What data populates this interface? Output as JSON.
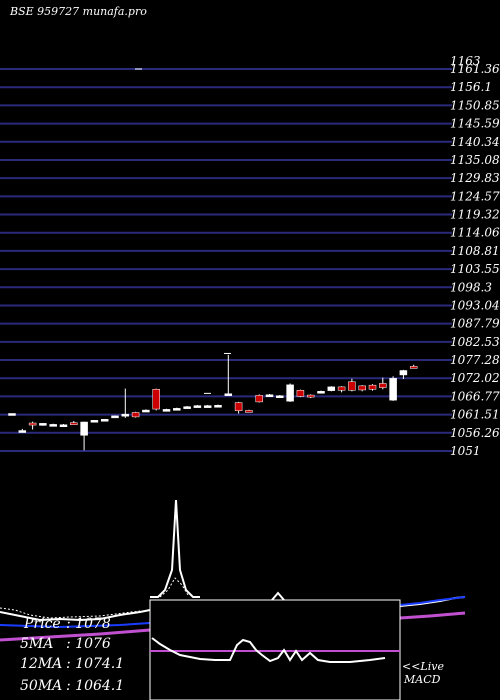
{
  "chart_data": {
    "type": "candlestick",
    "title": "BSE 959727 munafa.pro",
    "ylim": [
      1051,
      1163
    ],
    "price_ticks": [
      "1163",
      "1161.36",
      "1156.1",
      "1150.85",
      "1145.59",
      "1140.34",
      "1135.08",
      "1129.83",
      "1124.57",
      "1119.32",
      "1114.06",
      "1108.81",
      "1103.55",
      "1098.3",
      "1093.04",
      "1087.79",
      "1082.53",
      "1077.28",
      "1072.02",
      "1066.77",
      "1061.51",
      "1056.26",
      "1051"
    ],
    "candles": [
      {
        "o": 1062.0,
        "h": 1062.0,
        "l": 1061.5,
        "c": 1062.0,
        "color": "white"
      },
      {
        "o": 1057.0,
        "h": 1057.5,
        "l": 1056.5,
        "c": 1057.0,
        "color": "white"
      },
      {
        "o": 1059.2,
        "h": 1059.6,
        "l": 1057.3,
        "c": 1058.6,
        "color": "red"
      },
      {
        "o": 1058.9,
        "h": 1059.2,
        "l": 1058.4,
        "c": 1059.1,
        "color": "white"
      },
      {
        "o": 1058.8,
        "h": 1059.0,
        "l": 1058.6,
        "c": 1058.8,
        "color": "white"
      },
      {
        "o": 1058.7,
        "h": 1058.9,
        "l": 1058.5,
        "c": 1058.7,
        "color": "white"
      },
      {
        "o": 1059.3,
        "h": 1059.8,
        "l": 1058.9,
        "c": 1058.9,
        "color": "red"
      },
      {
        "o": 1059.5,
        "h": 1059.6,
        "l": 1051.2,
        "c": 1055.6,
        "color": "white"
      },
      {
        "o": 1060.0,
        "h": 1060.1,
        "l": 1059.9,
        "c": 1060.0,
        "color": "white"
      },
      {
        "o": 1060.3,
        "h": 1060.4,
        "l": 1060.1,
        "c": 1060.3,
        "color": "white"
      },
      {
        "o": 1061.3,
        "h": 1061.4,
        "l": 1061.0,
        "c": 1061.3,
        "color": "white"
      },
      {
        "o": 1061.2,
        "h": 1069.3,
        "l": 1060.7,
        "c": 1061.8,
        "color": "white"
      },
      {
        "o": 1062.3,
        "h": 1062.5,
        "l": 1060.8,
        "c": 1061.0,
        "color": "red"
      },
      {
        "o": 1063.0,
        "h": 1063.2,
        "l": 1062.8,
        "c": 1063.0,
        "color": "white"
      },
      {
        "o": 1069.1,
        "h": 1069.3,
        "l": 1062.9,
        "c": 1063.3,
        "color": "red"
      },
      {
        "o": 1063.2,
        "h": 1063.4,
        "l": 1062.8,
        "c": 1063.0,
        "color": "white"
      },
      {
        "o": 1063.5,
        "h": 1063.7,
        "l": 1063.3,
        "c": 1063.5,
        "color": "white"
      },
      {
        "o": 1064.0,
        "h": 1064.2,
        "l": 1063.7,
        "c": 1063.9,
        "color": "white"
      },
      {
        "o": 1064.3,
        "h": 1064.5,
        "l": 1064.1,
        "c": 1064.3,
        "color": "white"
      },
      {
        "o": 1064.3,
        "h": 1064.5,
        "l": 1064.1,
        "c": 1064.3,
        "color": "white"
      },
      {
        "o": 1064.4,
        "h": 1064.6,
        "l": 1064.1,
        "c": 1064.3,
        "color": "white"
      },
      {
        "o": 1067.8,
        "h": 1079.2,
        "l": 1067.6,
        "c": 1067.8,
        "color": "white"
      },
      {
        "o": 1065.2,
        "h": 1065.4,
        "l": 1062.0,
        "c": 1062.8,
        "color": "red"
      },
      {
        "o": 1062.9,
        "h": 1063.1,
        "l": 1062.5,
        "c": 1062.8,
        "color": "red"
      },
      {
        "o": 1067.3,
        "h": 1067.6,
        "l": 1065.2,
        "c": 1065.4,
        "color": "red"
      },
      {
        "o": 1067.5,
        "h": 1067.7,
        "l": 1067.3,
        "c": 1067.5,
        "color": "white"
      },
      {
        "o": 1067.2,
        "h": 1067.4,
        "l": 1066.8,
        "c": 1067.0,
        "color": "white"
      },
      {
        "o": 1065.6,
        "h": 1070.8,
        "l": 1065.4,
        "c": 1070.4,
        "color": "white"
      },
      {
        "o": 1068.8,
        "h": 1069.0,
        "l": 1066.8,
        "c": 1067.0,
        "color": "red"
      },
      {
        "o": 1067.4,
        "h": 1067.6,
        "l": 1066.5,
        "c": 1066.8,
        "color": "red"
      },
      {
        "o": 1068.5,
        "h": 1068.7,
        "l": 1068.2,
        "c": 1068.5,
        "color": "white"
      },
      {
        "o": 1068.7,
        "h": 1070.0,
        "l": 1068.5,
        "c": 1069.8,
        "color": "white"
      },
      {
        "o": 1069.8,
        "h": 1070.0,
        "l": 1068.2,
        "c": 1068.8,
        "color": "red"
      },
      {
        "o": 1071.3,
        "h": 1072.2,
        "l": 1068.5,
        "c": 1068.8,
        "color": "red"
      },
      {
        "o": 1070.1,
        "h": 1070.3,
        "l": 1068.5,
        "c": 1068.9,
        "color": "red"
      },
      {
        "o": 1070.3,
        "h": 1070.6,
        "l": 1068.7,
        "c": 1069.1,
        "color": "red"
      },
      {
        "o": 1070.8,
        "h": 1072.5,
        "l": 1069.1,
        "c": 1069.6,
        "color": "red"
      },
      {
        "o": 1065.9,
        "h": 1072.9,
        "l": 1065.7,
        "c": 1072.3,
        "color": "white"
      },
      {
        "o": 1073.3,
        "h": 1074.8,
        "l": 1072.1,
        "c": 1074.6,
        "color": "white"
      },
      {
        "o": 1075.8,
        "h": 1076.3,
        "l": 1075.3,
        "c": 1075.4,
        "color": "red"
      }
    ],
    "labels": {
      "price_label": "Price",
      "price_value": ": 1078",
      "ma5_label": "5MA",
      "ma5_value": ": 1076",
      "ma12_label": "12MA",
      "ma12_value": ": 1074.1",
      "ma50_label": "50MA",
      "ma50_value": ": 1064.1",
      "live_label": "<<Live",
      "macd_label": "MACD"
    },
    "colors": {
      "background": "#000000",
      "grid": "#2a2a7a",
      "up": "#ffffff",
      "down": "#cc0000",
      "ma_blue": "#1a3cff",
      "ma_violet": "#c050d0",
      "macd_signal": "#c050d0"
    }
  }
}
